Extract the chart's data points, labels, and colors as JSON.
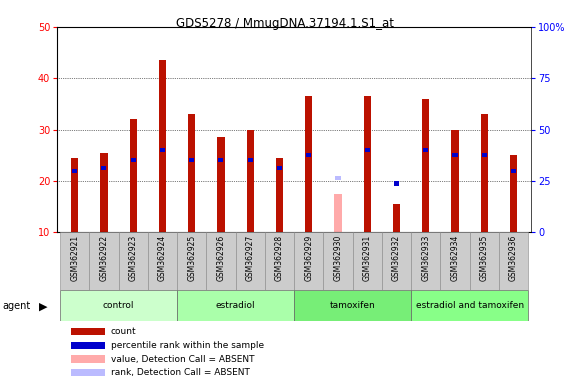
{
  "title": "GDS5278 / MmugDNA.37194.1.S1_at",
  "samples": [
    "GSM362921",
    "GSM362922",
    "GSM362923",
    "GSM362924",
    "GSM362925",
    "GSM362926",
    "GSM362927",
    "GSM362928",
    "GSM362929",
    "GSM362930",
    "GSM362931",
    "GSM362932",
    "GSM362933",
    "GSM362934",
    "GSM362935",
    "GSM362936"
  ],
  "count_values": [
    24.5,
    25.5,
    32.0,
    43.5,
    33.0,
    28.5,
    30.0,
    24.5,
    36.5,
    null,
    36.5,
    15.5,
    36.0,
    30.0,
    33.0,
    25.0
  ],
  "rank_values": [
    22.0,
    22.5,
    24.0,
    26.0,
    24.0,
    24.0,
    24.0,
    22.5,
    25.0,
    null,
    26.0,
    null,
    26.0,
    25.0,
    25.0,
    22.0
  ],
  "absent_count": [
    null,
    null,
    null,
    null,
    null,
    null,
    null,
    null,
    null,
    17.5,
    null,
    null,
    null,
    null,
    null,
    null
  ],
  "absent_rank": [
    null,
    null,
    null,
    null,
    null,
    null,
    null,
    null,
    null,
    20.5,
    null,
    19.5,
    null,
    null,
    null,
    null
  ],
  "groups": [
    {
      "label": "control",
      "indices": [
        0,
        1,
        2,
        3
      ],
      "color": "#ccffcc"
    },
    {
      "label": "estradiol",
      "indices": [
        4,
        5,
        6,
        7
      ],
      "color": "#aaffaa"
    },
    {
      "label": "tamoxifen",
      "indices": [
        8,
        9,
        10,
        11
      ],
      "color": "#77ee77"
    },
    {
      "label": "estradiol and tamoxifen",
      "indices": [
        12,
        13,
        14,
        15
      ],
      "color": "#88ff88"
    }
  ],
  "bar_color": "#bb1100",
  "rank_color": "#0000cc",
  "absent_bar_color": "#ffaaaa",
  "absent_rank_color": "#bbbbff",
  "background_color": "#ffffff",
  "ylim": [
    10,
    50
  ],
  "y2lim": [
    0,
    100
  ],
  "yticks": [
    10,
    20,
    30,
    40,
    50
  ],
  "y2ticks": [
    0,
    25,
    50,
    75,
    100
  ],
  "y2labels": [
    "0",
    "25",
    "50",
    "75",
    "100%"
  ],
  "bar_width": 0.25
}
